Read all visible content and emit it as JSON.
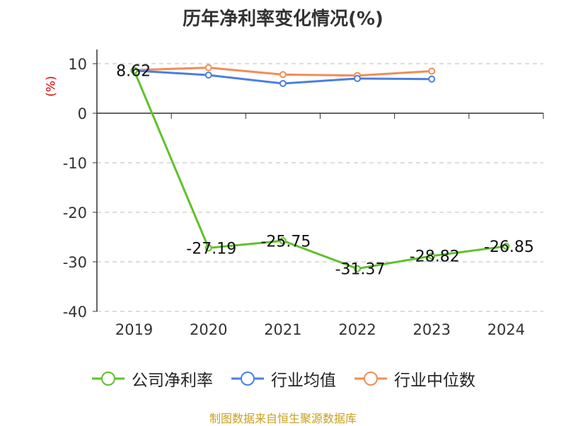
{
  "chart_data": {
    "type": "line",
    "title": "历年净利率变化情况(%)",
    "ylabel": "(%)",
    "categories": [
      "2019",
      "2020",
      "2021",
      "2022",
      "2023",
      "2024"
    ],
    "ylim": [
      -40,
      10
    ],
    "yticks": [
      10,
      0,
      -10,
      -20,
      -30,
      -40
    ],
    "grid": true,
    "legend_position": "bottom",
    "series": [
      {
        "name": "公司净利率",
        "color": "#5ec22a",
        "values": [
          8.62,
          -27.19,
          -25.75,
          -31.37,
          -28.82,
          -26.85
        ],
        "labels": [
          "8.62",
          "-27.19",
          "-25.75",
          "-31.37",
          "-28.82",
          "-26.85"
        ]
      },
      {
        "name": "行业均值",
        "color": "#4a7fe0",
        "values": [
          8.6,
          7.7,
          6.0,
          7.0,
          6.9,
          null
        ]
      },
      {
        "name": "行业中位数",
        "color": "#f28c55",
        "values": [
          8.7,
          9.2,
          7.8,
          7.6,
          8.5,
          null
        ]
      }
    ]
  },
  "source_text": "制图数据来自恒生聚源数据库"
}
